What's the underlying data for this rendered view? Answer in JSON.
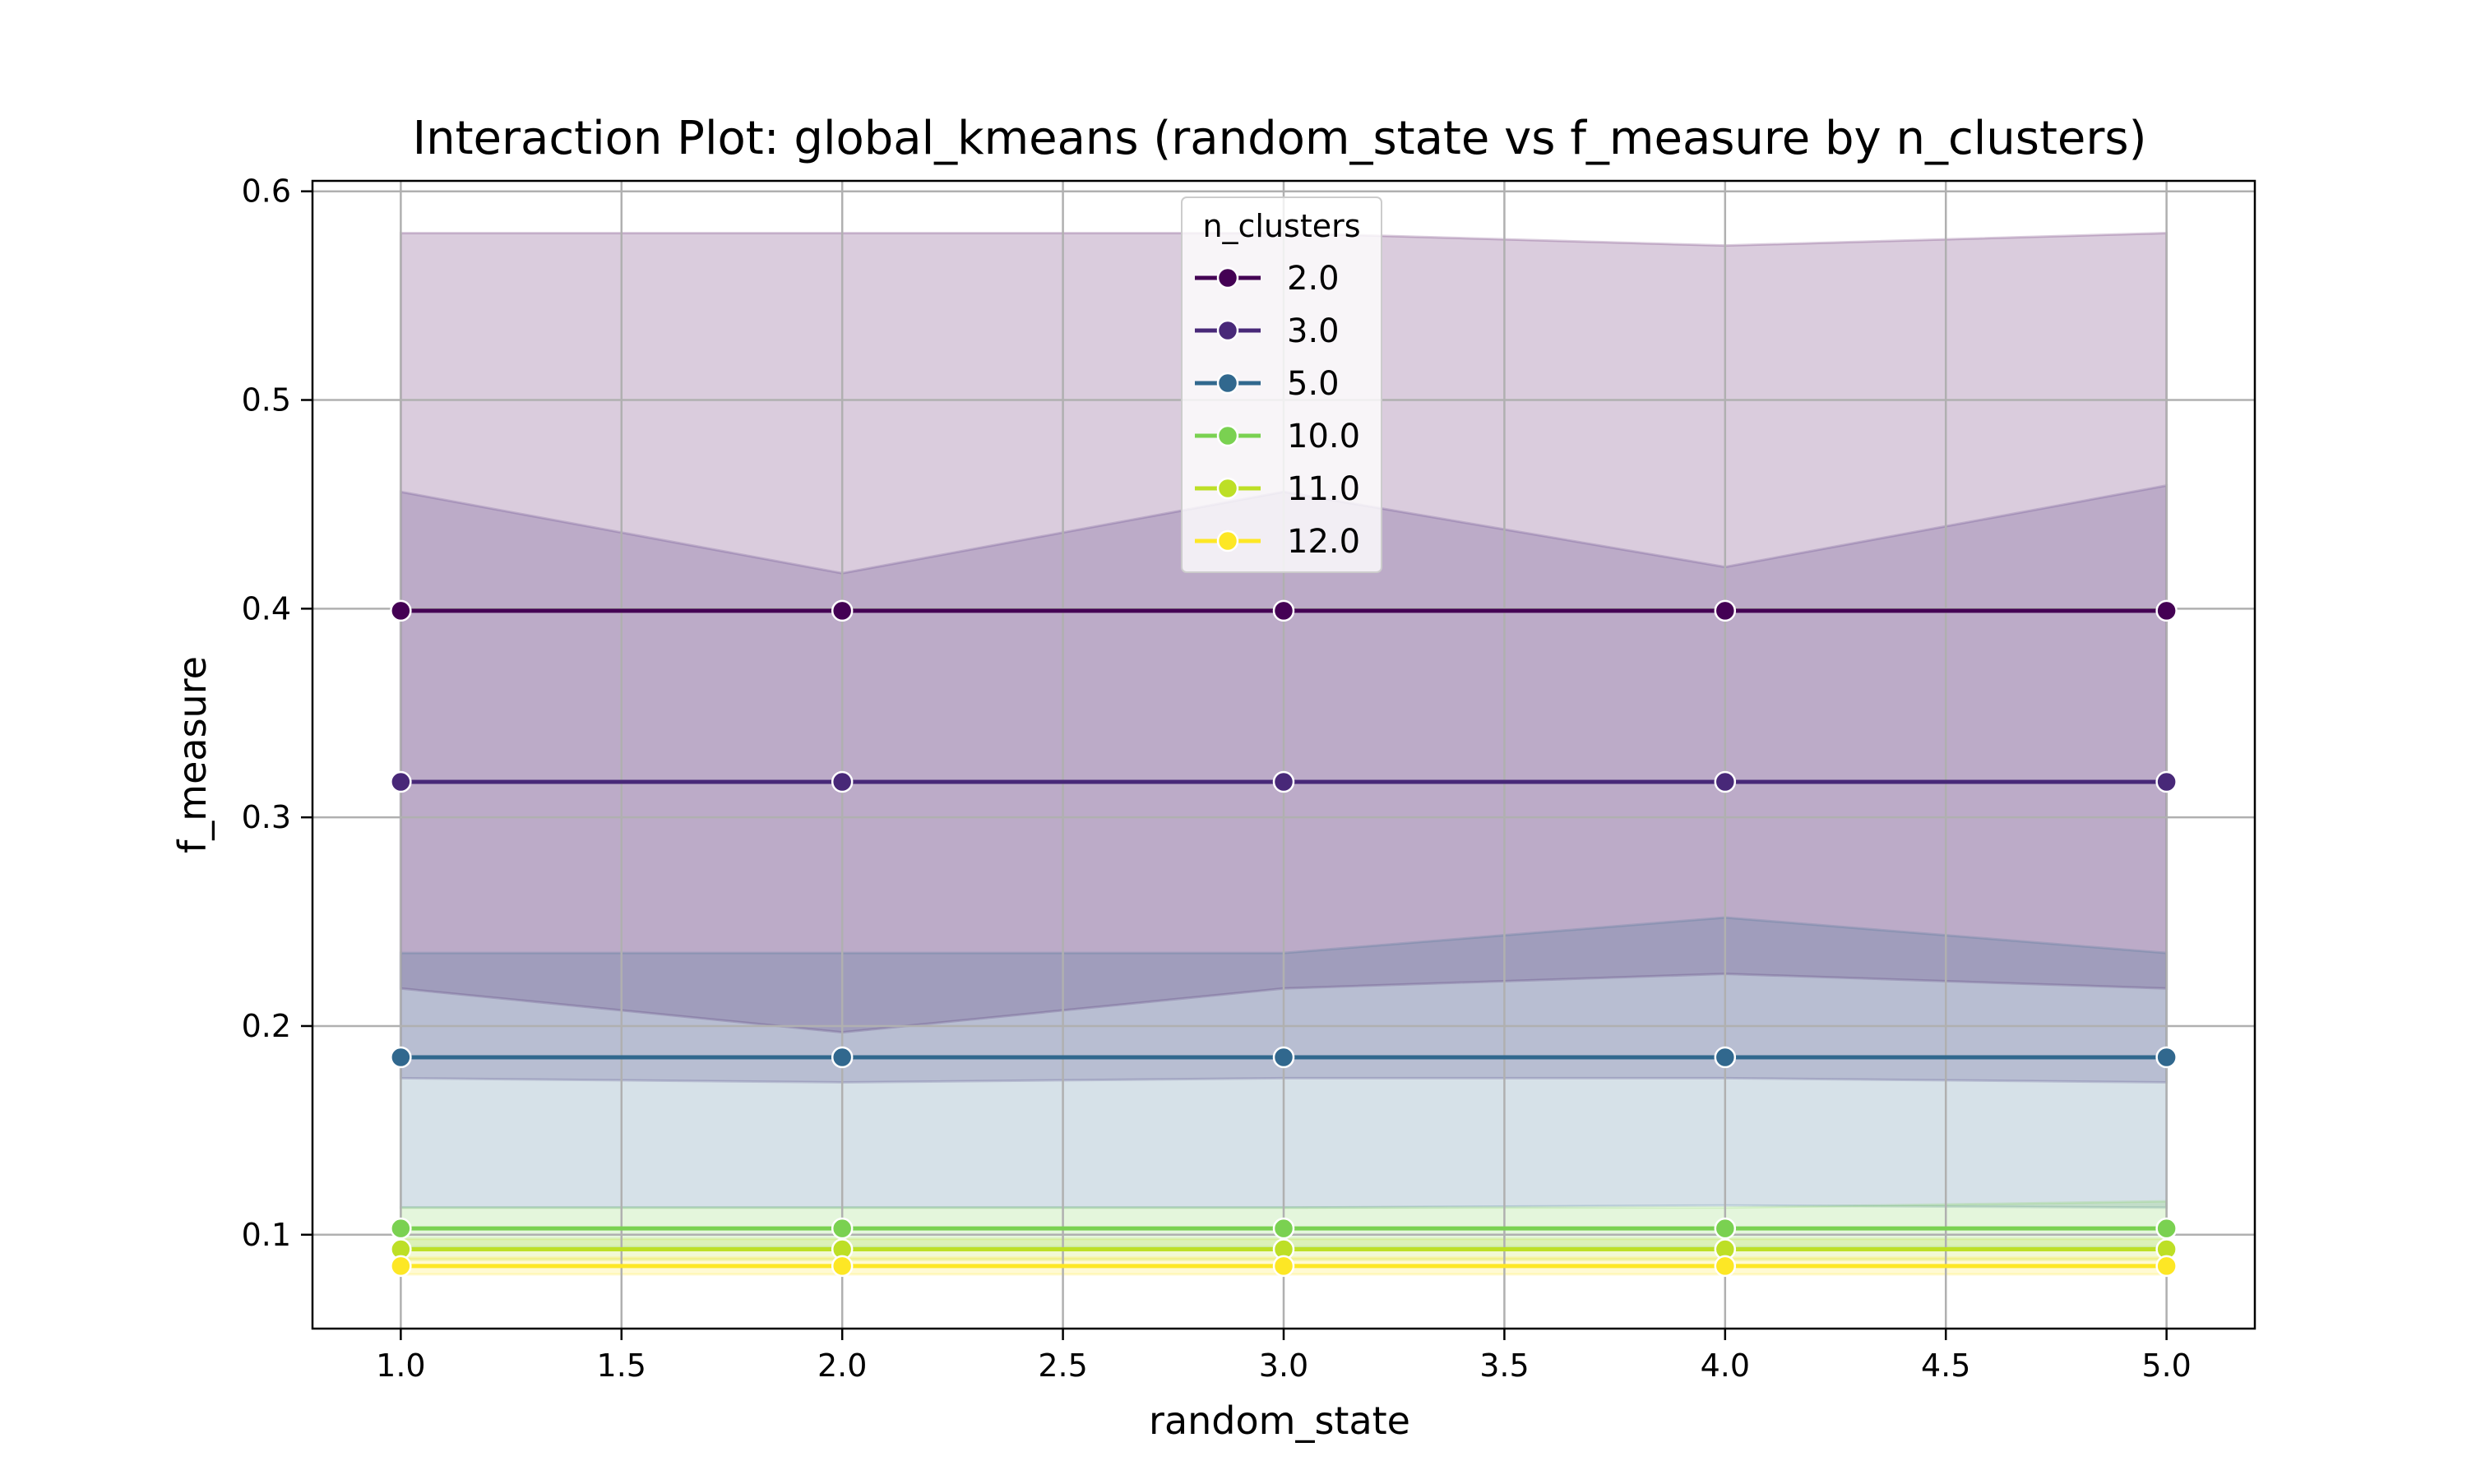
{
  "chart_data": {
    "type": "line",
    "title": "Interaction Plot: global_kmeans (random_state vs f_measure by n_clusters)",
    "xlabel": "random_state",
    "ylabel": "f_measure",
    "xlim": [
      0.8,
      5.2
    ],
    "ylim": [
      0.055,
      0.605
    ],
    "x_ticks": [
      1.0,
      1.5,
      2.0,
      2.5,
      3.0,
      3.5,
      4.0,
      4.5,
      5.0
    ],
    "x_tick_labels": [
      "1.0",
      "1.5",
      "2.0",
      "2.5",
      "3.0",
      "3.5",
      "4.0",
      "4.5",
      "5.0"
    ],
    "y_ticks": [
      0.1,
      0.2,
      0.3,
      0.4,
      0.5,
      0.6
    ],
    "y_tick_labels": [
      "0.1",
      "0.2",
      "0.3",
      "0.4",
      "0.5",
      "0.6"
    ],
    "grid": true,
    "legend": {
      "title": "n_clusters",
      "placement": "upper-center"
    },
    "x": [
      1,
      2,
      3,
      4,
      5
    ],
    "series": [
      {
        "name": "2.0",
        "color": "#440154",
        "values": [
          0.399,
          0.399,
          0.399,
          0.399,
          0.399
        ],
        "band_lower": [
          0.218,
          0.197,
          0.218,
          0.225,
          0.218
        ],
        "band_upper": [
          0.58,
          0.58,
          0.58,
          0.574,
          0.58
        ]
      },
      {
        "name": "3.0",
        "color": "#482878",
        "values": [
          0.317,
          0.317,
          0.317,
          0.317,
          0.317
        ],
        "band_lower": [
          0.175,
          0.173,
          0.175,
          0.175,
          0.173
        ],
        "band_upper": [
          0.456,
          0.417,
          0.456,
          0.42,
          0.459
        ]
      },
      {
        "name": "5.0",
        "color": "#31688e",
        "values": [
          0.185,
          0.185,
          0.185,
          0.185,
          0.185
        ],
        "band_lower": [
          0.113,
          0.113,
          0.113,
          0.114,
          0.113
        ],
        "band_upper": [
          0.235,
          0.235,
          0.235,
          0.252,
          0.235
        ]
      },
      {
        "name": "10.0",
        "color": "#7ad151",
        "values": [
          0.103,
          0.103,
          0.103,
          0.103,
          0.103
        ],
        "band_lower": [
          0.094,
          0.094,
          0.094,
          0.094,
          0.094
        ],
        "band_upper": [
          0.113,
          0.113,
          0.113,
          0.113,
          0.116
        ]
      },
      {
        "name": "11.0",
        "color": "#bddf26",
        "values": [
          0.093,
          0.093,
          0.093,
          0.093,
          0.093
        ],
        "band_lower": [
          0.088,
          0.088,
          0.088,
          0.088,
          0.088
        ],
        "band_upper": [
          0.098,
          0.098,
          0.098,
          0.098,
          0.098
        ]
      },
      {
        "name": "12.0",
        "color": "#fde725",
        "values": [
          0.085,
          0.085,
          0.085,
          0.085,
          0.085
        ],
        "band_lower": [
          0.081,
          0.081,
          0.081,
          0.081,
          0.081
        ],
        "band_upper": [
          0.089,
          0.089,
          0.089,
          0.089,
          0.089
        ]
      }
    ]
  }
}
